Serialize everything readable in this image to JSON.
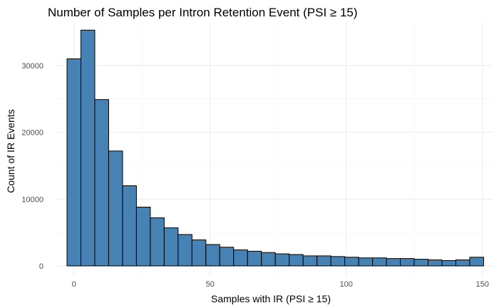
{
  "chart_data": {
    "type": "bar",
    "title": "Number of Samples per Intron Retention Event (PSI ≥ 15)",
    "xlabel": "Samples with IR (PSI ≥ 15)",
    "ylabel": "Count of IR Events",
    "bar_color": "#4682B4",
    "bar_edge_color": "#000000",
    "grid": true,
    "xlim": [
      -7,
      154
    ],
    "ylim": [
      -1500,
      36500
    ],
    "x_ticks": [
      0,
      50,
      100,
      150
    ],
    "x_tick_labels": [
      "0",
      "50",
      "100",
      "150"
    ],
    "y_ticks": [
      0,
      10000,
      20000,
      30000
    ],
    "y_tick_labels": [
      "0",
      "10000",
      "20000",
      "30000"
    ],
    "bin_width": 5.1,
    "bin_centers": [
      0,
      5.1,
      10.2,
      15.3,
      20.4,
      25.5,
      30.6,
      35.7,
      40.8,
      45.9,
      51,
      56.1,
      61.2,
      66.3,
      71.4,
      76.5,
      81.6,
      86.7,
      91.8,
      96.9,
      102,
      107.1,
      112.2,
      117.3,
      122.4,
      127.5,
      132.6,
      137.7,
      142.8,
      147.9
    ],
    "values": [
      31000,
      35300,
      24900,
      17200,
      12000,
      8800,
      7200,
      5700,
      4700,
      3900,
      3200,
      2800,
      2400,
      2200,
      2000,
      1800,
      1700,
      1500,
      1500,
      1400,
      1300,
      1200,
      1200,
      1100,
      1100,
      1000,
      900,
      800,
      900,
      1300
    ]
  }
}
